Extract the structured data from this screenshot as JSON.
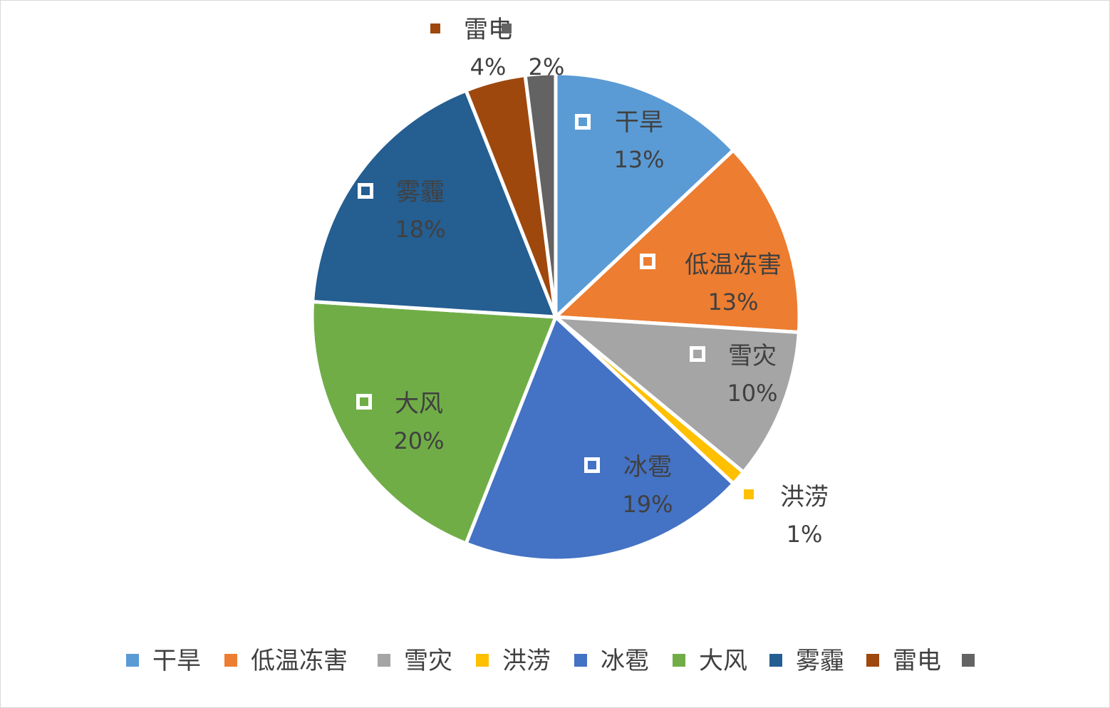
{
  "chart_data": {
    "type": "pie",
    "title": "",
    "series": [
      {
        "name": "干旱",
        "value": 13,
        "label": "13%",
        "color": "#5B9BD5"
      },
      {
        "name": "低温冻害",
        "value": 13,
        "label": "13%",
        "color": "#ED7D31"
      },
      {
        "name": "雪灾",
        "value": 10,
        "label": "10%",
        "color": "#A5A5A5"
      },
      {
        "name": "洪涝",
        "value": 1,
        "label": "1%",
        "color": "#FFC000"
      },
      {
        "name": "冰雹",
        "value": 19,
        "label": "19%",
        "color": "#4472C4"
      },
      {
        "name": "大风",
        "value": 20,
        "label": "20%",
        "color": "#70AD47"
      },
      {
        "name": "雾霾",
        "value": 18,
        "label": "18%",
        "color": "#255E91"
      },
      {
        "name": "雷电",
        "value": 4,
        "label": "4%",
        "color": "#9E480E"
      },
      {
        "name": "",
        "value": 2,
        "label": "2%",
        "color": "#636363"
      }
    ],
    "legend": "bottom",
    "data_labels": "category name and percentage"
  }
}
